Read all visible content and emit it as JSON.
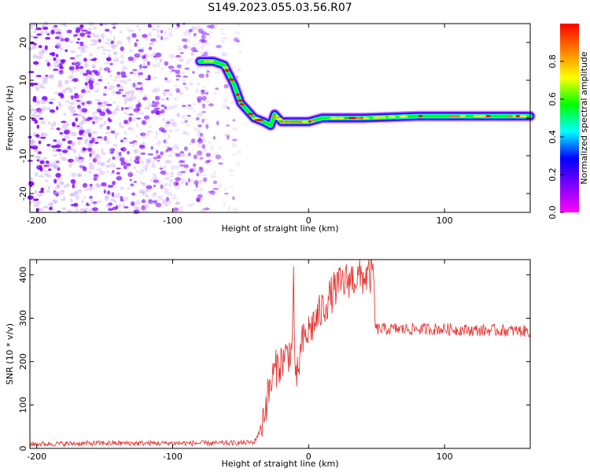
{
  "title": "S149.2023.055.03.56.R07",
  "chart_data": [
    {
      "type": "heatmap",
      "xlabel": "Height of straight line (km)",
      "ylabel": "Frequency (Hz)",
      "xlim": [
        -205,
        163
      ],
      "ylim": [
        -25,
        25
      ],
      "xticks": [
        -200,
        -100,
        0,
        100
      ],
      "yticks": [
        20,
        10,
        0,
        -10,
        -20
      ],
      "colorbar": {
        "label": "Normalized spectral amplitude",
        "range": [
          0,
          1
        ],
        "ticks": [
          0.0,
          0.2,
          0.4,
          0.6,
          0.8
        ],
        "colormap": [
          "#ff00ff",
          "#7f00ff",
          "#0000ff",
          "#00ffff",
          "#00ff00",
          "#ffff00",
          "#ff7f00",
          "#ff0000"
        ]
      },
      "ridge": {
        "x": [
          -80,
          -70,
          -62,
          -55,
          -50,
          -45,
          -40,
          -33,
          -28,
          -25,
          -20,
          -15,
          -10,
          0,
          10,
          40,
          80,
          110,
          163
        ],
        "y": [
          15,
          15,
          14,
          9,
          4,
          2,
          0,
          -1,
          -2,
          1,
          -1,
          -1,
          -1,
          -1,
          0,
          0,
          0.5,
          0.5,
          0.5
        ]
      },
      "noise_region": {
        "x_from": -205,
        "x_to": -50
      }
    },
    {
      "type": "line",
      "xlabel": "Height of straight line (km)",
      "ylabel": "SNR (10 * v/v)",
      "xlim": [
        -205,
        163
      ],
      "ylim": [
        0,
        435
      ],
      "xticks": [
        -200,
        -100,
        0,
        100
      ],
      "yticks": [
        0,
        100,
        200,
        300,
        400
      ],
      "color": "#e53935",
      "series": [
        {
          "x": [
            -205,
            -150,
            -100,
            -60,
            -40,
            -36,
            -30,
            -25,
            -20,
            -12,
            -11,
            -10,
            -5,
            0,
            10,
            20,
            30,
            40,
            48,
            49,
            60,
            80,
            100,
            120,
            140,
            163
          ],
          "y": [
            10,
            12,
            12,
            12,
            14,
            40,
            120,
            180,
            200,
            230,
            430,
            130,
            240,
            270,
            320,
            370,
            390,
            395,
            400,
            275,
            275,
            275,
            275,
            272,
            272,
            270
          ]
        }
      ]
    }
  ]
}
